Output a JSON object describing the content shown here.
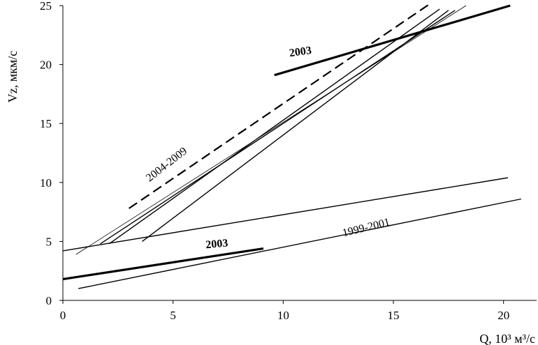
{
  "chart_data": {
    "type": "line",
    "xlabel": "Q, 10³ м³/с",
    "ylabel": "Vz, мкм/с",
    "xlim": [
      0,
      21.5
    ],
    "ylim": [
      0,
      25
    ],
    "xticks": [
      0,
      5,
      10,
      15,
      20
    ],
    "yticks": [
      0,
      5,
      10,
      15,
      20,
      25
    ],
    "grid": false,
    "series": [
      {
        "values": [
          [
            0.7,
            1.0
          ],
          [
            20.8,
            8.6
          ]
        ],
        "style": "thin"
      },
      {
        "values": [
          [
            0.0,
            4.2
          ],
          [
            20.2,
            10.4
          ]
        ],
        "style": "thin"
      },
      {
        "values": [
          [
            0.0,
            1.8
          ],
          [
            9.1,
            4.4
          ]
        ],
        "style": "bold"
      },
      {
        "values": [
          [
            9.6,
            19.1
          ],
          [
            20.3,
            25.0
          ]
        ],
        "style": "bold"
      },
      {
        "values": [
          [
            3.0,
            7.8
          ],
          [
            16.7,
            25.2
          ]
        ],
        "style": "dashed"
      },
      {
        "values": [
          [
            0.6,
            3.9
          ],
          [
            18.3,
            25.0
          ]
        ],
        "style": "hairline"
      },
      {
        "values": [
          [
            1.7,
            4.8
          ],
          [
            17.8,
            24.6
          ]
        ],
        "style": "thin"
      },
      {
        "values": [
          [
            2.1,
            4.8
          ],
          [
            17.1,
            24.7
          ]
        ],
        "style": "thin"
      },
      {
        "values": [
          [
            3.6,
            5.0
          ],
          [
            17.5,
            24.6
          ]
        ],
        "style": "thin"
      }
    ],
    "annotations": [
      {
        "text": "2003",
        "x": 10.8,
        "y": 20.8,
        "weight": "bold",
        "rotation": -8
      },
      {
        "text": "2004-2009",
        "x": 4.8,
        "y": 11.3,
        "weight": "normal",
        "rotation": -38
      },
      {
        "text": "2003",
        "x": 7.0,
        "y": 4.5,
        "weight": "bold",
        "rotation": -5
      },
      {
        "text": "1999-2001",
        "x": 13.8,
        "y": 5.9,
        "weight": "normal",
        "rotation": -14
      }
    ],
    "colors": {
      "line": "#000000",
      "background": "#ffffff"
    }
  }
}
